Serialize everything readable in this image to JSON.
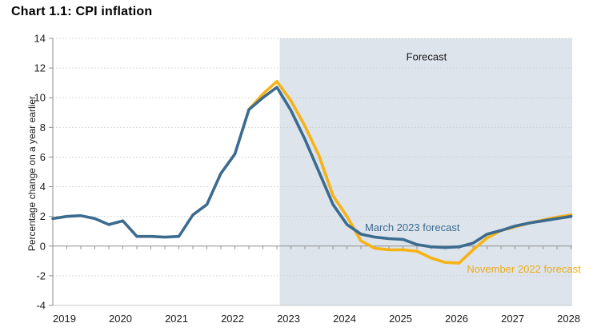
{
  "header": {
    "title": "Chart 1.1: CPI inflation"
  },
  "chart_data": {
    "type": "line",
    "title": "Chart 1.1: CPI inflation",
    "xlabel": "",
    "ylabel": "Percentage change on a year earlier",
    "ylim": [
      -4,
      14
    ],
    "xlim": [
      2018.75,
      2028.02
    ],
    "y_ticks": [
      -4,
      -2,
      0,
      2,
      4,
      6,
      8,
      10,
      12,
      14
    ],
    "x_ticks": [
      2019,
      2020,
      2021,
      2022,
      2023,
      2024,
      2025,
      2026,
      2027,
      2028
    ],
    "grid": "horizontal dotted lines every 2 units",
    "minor_x_ticks": "quarterly ticks along the zero line",
    "legend_position": "inline labels on chart, no legend box",
    "forecast_region": {
      "label": "Forecast",
      "start": 2022.8,
      "end": 2028.02,
      "fill": "#dde4eb"
    },
    "series": [
      {
        "name": "November 2022 forecast",
        "color": "#F7B216",
        "points": [
          [
            2022.25,
            9.2
          ],
          [
            2022.5,
            10.25
          ],
          [
            2022.75,
            11.1
          ],
          [
            2023,
            9.8
          ],
          [
            2023.25,
            8.1
          ],
          [
            2023.5,
            6.1
          ],
          [
            2023.75,
            3.4
          ],
          [
            2024,
            2.0
          ],
          [
            2024.25,
            0.35
          ],
          [
            2024.5,
            -0.15
          ],
          [
            2024.75,
            -0.25
          ],
          [
            2025,
            -0.25
          ],
          [
            2025.25,
            -0.35
          ],
          [
            2025.5,
            -0.8
          ],
          [
            2025.75,
            -1.1
          ],
          [
            2026,
            -1.15
          ],
          [
            2026.25,
            -0.25
          ],
          [
            2026.5,
            0.55
          ],
          [
            2026.75,
            1.05
          ],
          [
            2027,
            1.3
          ],
          [
            2027.25,
            1.55
          ],
          [
            2027.5,
            1.75
          ],
          [
            2027.75,
            1.95
          ],
          [
            2028,
            2.1
          ]
        ]
      },
      {
        "name": "March 2023 forecast",
        "color": "#3B6B8F",
        "points": [
          [
            2018.75,
            1.85
          ],
          [
            2019,
            2.0
          ],
          [
            2019.25,
            2.05
          ],
          [
            2019.5,
            1.85
          ],
          [
            2019.75,
            1.45
          ],
          [
            2020,
            1.7
          ],
          [
            2020.25,
            0.65
          ],
          [
            2020.5,
            0.65
          ],
          [
            2020.75,
            0.6
          ],
          [
            2021,
            0.65
          ],
          [
            2021.25,
            2.1
          ],
          [
            2021.5,
            2.8
          ],
          [
            2021.75,
            4.9
          ],
          [
            2022,
            6.2
          ],
          [
            2022.25,
            9.2
          ],
          [
            2022.5,
            10.0
          ],
          [
            2022.75,
            10.7
          ],
          [
            2023,
            9.15
          ],
          [
            2023.25,
            7.2
          ],
          [
            2023.5,
            5.0
          ],
          [
            2023.75,
            2.8
          ],
          [
            2024,
            1.45
          ],
          [
            2024.25,
            0.8
          ],
          [
            2024.5,
            0.6
          ],
          [
            2024.75,
            0.5
          ],
          [
            2025,
            0.45
          ],
          [
            2025.25,
            0.1
          ],
          [
            2025.5,
            -0.05
          ],
          [
            2025.75,
            -0.1
          ],
          [
            2026,
            -0.05
          ],
          [
            2026.25,
            0.2
          ],
          [
            2026.5,
            0.8
          ],
          [
            2026.75,
            1.05
          ],
          [
            2027,
            1.35
          ],
          [
            2027.25,
            1.55
          ],
          [
            2027.5,
            1.7
          ],
          [
            2027.75,
            1.85
          ],
          [
            2028,
            2.0
          ]
        ]
      }
    ],
    "annotations": [
      {
        "text": "Forecast",
        "x": 2025.42,
        "y": 12.75,
        "color": "#1a1a1a",
        "anchor": "middle",
        "name": "forecast-label"
      },
      {
        "text": "March 2023 forecast",
        "x": 2024.32,
        "y": 1.25,
        "color": "#3B6B8F",
        "anchor": "start",
        "name": "series-label-march-2023-forecast"
      },
      {
        "text": "November 2022 forecast",
        "x": 2026.14,
        "y": -1.55,
        "color": "#EBAB1D",
        "anchor": "start",
        "name": "series-label-november-2022-forecast"
      }
    ],
    "axis_colors": {
      "spine": "#8f8f8f",
      "zero_line": "#8f8f8f",
      "grid": "#cdcdcd",
      "bottom_edge": "#c9c9c9",
      "tick_label": "#1a1a1a"
    }
  }
}
